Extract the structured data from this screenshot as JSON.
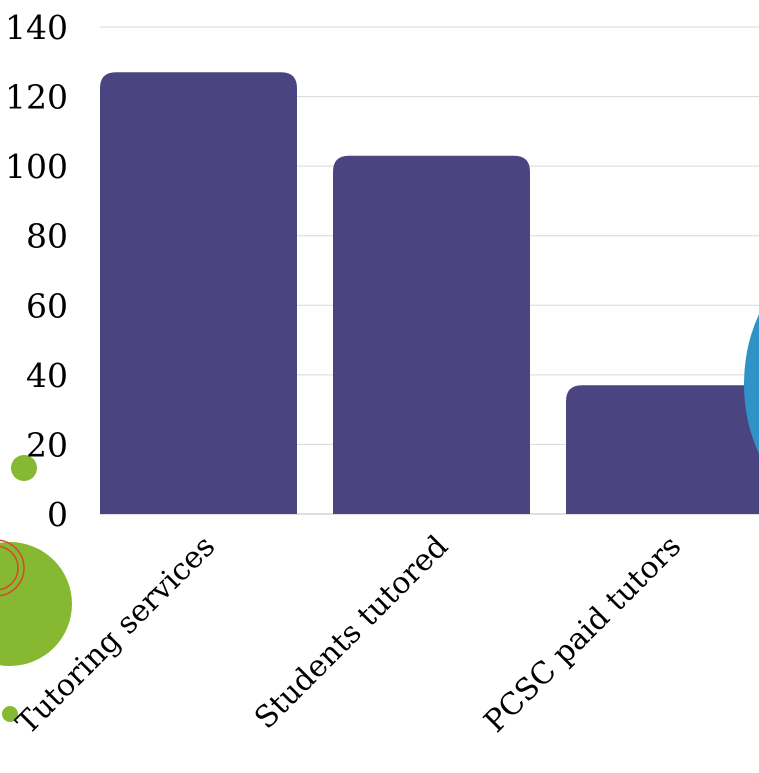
{
  "colors": {
    "bar": "#4a4480",
    "grid": "#d9d9d9",
    "axis": "#bfbfbf",
    "decor_green": "#86b832",
    "decor_red": "#d9482b",
    "decor_blue": "#2f93c8"
  },
  "chart_data": {
    "type": "bar",
    "title": "",
    "xlabel": "",
    "ylabel": "",
    "categories": [
      "Tutoring services",
      "Students tutored",
      "PCSC paid tutors"
    ],
    "values": [
      127,
      103,
      37
    ],
    "ylim": [
      0,
      140
    ],
    "yticks": [
      "0",
      "20",
      "40",
      "60",
      "80",
      "100",
      "120",
      "140"
    ],
    "grid": true,
    "legend": "none"
  }
}
